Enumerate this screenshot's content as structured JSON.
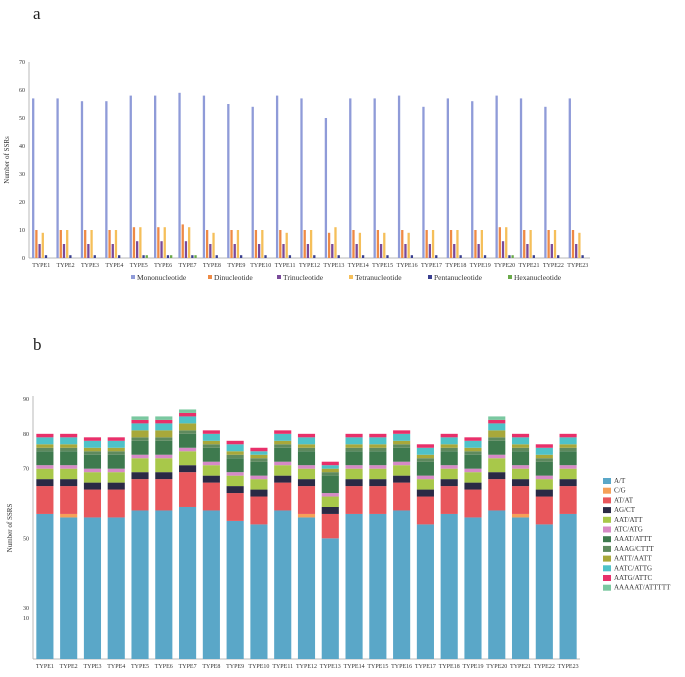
{
  "panel_labels": {
    "a": "a",
    "b": "b"
  },
  "colors": {
    "series_a": [
      "#8f9bd8",
      "#ee8a45",
      "#7a4a9a",
      "#f5bf5a",
      "#3a3f8f",
      "#6aaa4a"
    ],
    "series_b": [
      "#5aa7c8",
      "#f5a058",
      "#e8575c",
      "#2a2a45",
      "#a8c84a",
      "#d68ac6",
      "#3e7a4e",
      "#5e8a5e",
      "#a8a83a",
      "#4ec2c8",
      "#e8306a",
      "#7ac8a0"
    ]
  },
  "chart_data": [
    {
      "type": "bar",
      "title": "",
      "xlabel": "",
      "ylabel": "Number of SSRs",
      "ylim": [
        0,
        70
      ],
      "yticks": [
        "0",
        "10",
        "20",
        "30",
        "40",
        "50",
        "60",
        "70"
      ],
      "grid": false,
      "legend_position": "bottom",
      "categories": [
        "TYPE1",
        "TYPE2",
        "TYPE3",
        "TYPE4",
        "TYPE5",
        "TYPE6",
        "TYPE7",
        "TYPE8",
        "TYPE9",
        "TYPE10",
        "TYPE11",
        "TYPE12",
        "TYPE13",
        "TYPE14",
        "TYPE15",
        "TYPE16",
        "TYPE17",
        "TYPE18",
        "TYPE19",
        "TYPE20",
        "TYPE21",
        "TYPE22",
        "TYPE23"
      ],
      "series": [
        {
          "name": "Mononucleotide",
          "values": [
            57,
            57,
            56,
            56,
            58,
            58,
            59,
            58,
            55,
            54,
            58,
            57,
            50,
            57,
            57,
            58,
            54,
            57,
            56,
            58,
            57,
            54,
            57
          ]
        },
        {
          "name": "Dinucleotide",
          "values": [
            10,
            10,
            10,
            10,
            11,
            11,
            12,
            10,
            10,
            10,
            10,
            10,
            9,
            10,
            10,
            10,
            10,
            10,
            10,
            11,
            10,
            10,
            10
          ]
        },
        {
          "name": "Trinucleotide",
          "values": [
            5,
            5,
            5,
            5,
            6,
            6,
            6,
            5,
            5,
            5,
            5,
            5,
            5,
            5,
            5,
            5,
            5,
            5,
            5,
            6,
            5,
            5,
            5
          ]
        },
        {
          "name": "Tetranucleotide",
          "values": [
            9,
            10,
            10,
            10,
            11,
            11,
            11,
            9,
            10,
            10,
            9,
            10,
            11,
            9,
            9,
            9,
            10,
            10,
            10,
            11,
            10,
            10,
            9
          ]
        },
        {
          "name": "Pentanucleotide",
          "values": [
            1,
            1,
            1,
            1,
            1,
            1,
            1,
            1,
            1,
            1,
            1,
            1,
            1,
            1,
            1,
            1,
            1,
            1,
            1,
            1,
            1,
            1,
            1
          ]
        },
        {
          "name": "Hexanucleotide",
          "values": [
            0,
            0,
            0,
            0,
            1,
            1,
            1,
            0,
            0,
            0,
            0,
            0,
            0,
            0,
            0,
            0,
            0,
            0,
            0,
            1,
            0,
            0,
            0
          ]
        }
      ]
    },
    {
      "type": "bar",
      "stacked": true,
      "title": "",
      "xlabel": "",
      "ylabel": "Number of SSRS",
      "ylim": [
        0,
        90
      ],
      "yticks": [
        "10",
        "30",
        "50",
        "70",
        "80",
        "90"
      ],
      "grid": false,
      "legend_position": "right",
      "categories": [
        "TYPE1",
        "TYPE2",
        "TYPE3",
        "TYPE4",
        "TYPE5",
        "TYPE6",
        "TYPE7",
        "TYPE8",
        "TYPE9",
        "TYPE10",
        "TYPE11",
        "TYPE12",
        "TYPE13",
        "TYPE14",
        "TYPE15",
        "TYPE16",
        "TYPE17",
        "TYPE18",
        "TYPE19",
        "TYPE20",
        "TYPE21",
        "TYPE22",
        "TYPE23"
      ],
      "series": [
        {
          "name": "A/T",
          "values": [
            57,
            56,
            56,
            56,
            58,
            58,
            59,
            58,
            55,
            54,
            58,
            56,
            50,
            57,
            57,
            58,
            54,
            57,
            56,
            58,
            56,
            54,
            57
          ]
        },
        {
          "name": "C/G",
          "values": [
            0,
            1,
            0,
            0,
            0,
            0,
            0,
            0,
            0,
            0,
            0,
            1,
            0,
            0,
            0,
            0,
            0,
            0,
            0,
            0,
            1,
            0,
            0
          ]
        },
        {
          "name": "AT/AT",
          "values": [
            8,
            8,
            8,
            8,
            9,
            9,
            10,
            8,
            8,
            8,
            8,
            8,
            7,
            8,
            8,
            8,
            8,
            8,
            8,
            9,
            8,
            8,
            8
          ]
        },
        {
          "name": "AG/CT",
          "values": [
            2,
            2,
            2,
            2,
            2,
            2,
            2,
            2,
            2,
            2,
            2,
            2,
            2,
            2,
            2,
            2,
            2,
            2,
            2,
            2,
            2,
            2,
            2
          ]
        },
        {
          "name": "AAT/ATT",
          "values": [
            3,
            3,
            3,
            3,
            4,
            4,
            4,
            3,
            3,
            3,
            3,
            3,
            3,
            3,
            3,
            3,
            3,
            3,
            3,
            4,
            3,
            3,
            3
          ]
        },
        {
          "name": "ATC/ATG",
          "values": [
            1,
            1,
            1,
            1,
            1,
            1,
            1,
            1,
            1,
            1,
            1,
            1,
            1,
            1,
            1,
            1,
            1,
            1,
            1,
            1,
            1,
            1,
            1
          ]
        },
        {
          "name": "AAAT/ATTT",
          "values": [
            4,
            4,
            4,
            4,
            4,
            4,
            4,
            4,
            4,
            4,
            4,
            4,
            5,
            4,
            4,
            4,
            4,
            4,
            4,
            4,
            4,
            4,
            4
          ]
        },
        {
          "name": "AAAG/CTTT",
          "values": [
            1,
            1,
            1,
            1,
            1,
            1,
            1,
            1,
            1,
            1,
            1,
            1,
            1,
            1,
            1,
            1,
            1,
            1,
            1,
            1,
            1,
            1,
            1
          ]
        },
        {
          "name": "AATT/AATT",
          "values": [
            1,
            1,
            1,
            1,
            2,
            2,
            2,
            1,
            1,
            1,
            1,
            1,
            1,
            1,
            1,
            1,
            1,
            1,
            1,
            2,
            1,
            1,
            1
          ]
        },
        {
          "name": "AATC/ATTG",
          "values": [
            2,
            2,
            2,
            2,
            2,
            2,
            2,
            2,
            2,
            1,
            2,
            2,
            1,
            2,
            2,
            2,
            2,
            2,
            2,
            2,
            2,
            2,
            2
          ]
        },
        {
          "name": "AATG/ATTC",
          "values": [
            1,
            1,
            1,
            1,
            1,
            1,
            1,
            1,
            1,
            1,
            1,
            1,
            1,
            1,
            1,
            1,
            1,
            1,
            1,
            1,
            1,
            1,
            1
          ]
        },
        {
          "name": "AAAAAT/ATTTTT",
          "values": [
            0,
            0,
            0,
            0,
            1,
            1,
            1,
            0,
            0,
            0,
            0,
            0,
            0,
            0,
            0,
            0,
            0,
            0,
            0,
            1,
            0,
            0,
            0
          ]
        }
      ]
    }
  ]
}
